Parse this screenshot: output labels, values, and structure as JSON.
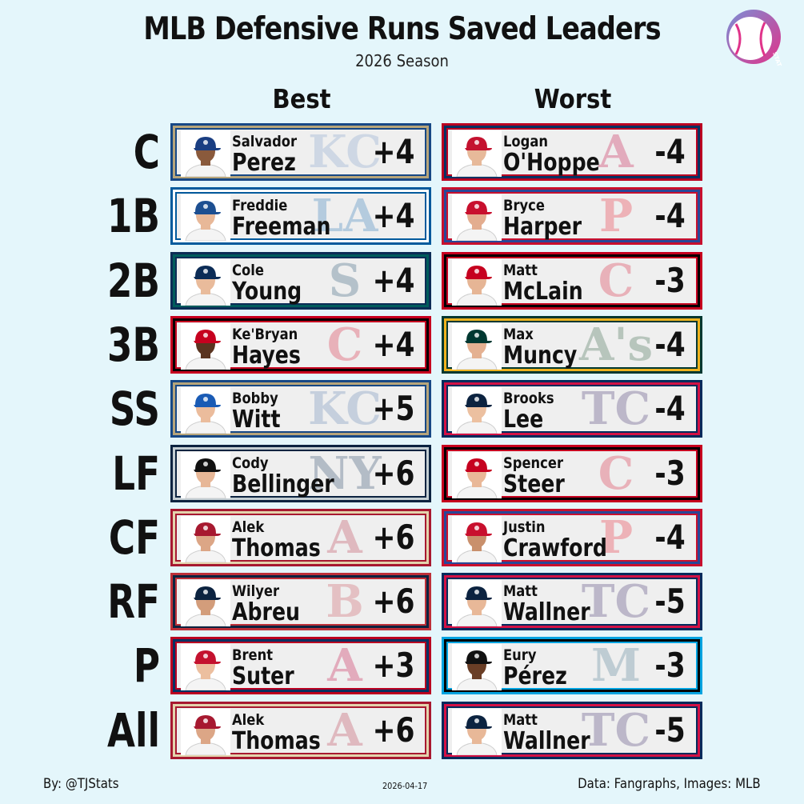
{
  "header": {
    "title": "MLB Defensive Runs Saved Leaders",
    "subtitle": "2026 Season",
    "logo_text": "STATS",
    "best_label": "Best",
    "worst_label": "Worst"
  },
  "rows": [
    {
      "position": "C",
      "best": {
        "first": "Salvador",
        "last": "Perez",
        "value": "+4",
        "team_icon": "royals-logo",
        "colors": [
          "#174885",
          "#b7a57a",
          "#7d9cc8"
        ],
        "cap": "#1a3e82",
        "skin": "#8a5a3c"
      },
      "worst": {
        "first": "Logan",
        "last": "O'Hoppe",
        "value": "-4",
        "team_icon": "angels-logo",
        "colors": [
          "#ba0021",
          "#003263",
          "#c4003a"
        ],
        "cap": "#c4122f",
        "skin": "#e7b99a"
      }
    },
    {
      "position": "1B",
      "best": {
        "first": "Freddie",
        "last": "Freeman",
        "value": "+4",
        "team_icon": "dodgers-logo",
        "colors": [
          "#005a9c",
          "#ffffff",
          "#1e6fb5"
        ],
        "cap": "#1d4f91",
        "skin": "#e8b898"
      },
      "worst": {
        "first": "Bryce",
        "last": "Harper",
        "value": "-4",
        "team_icon": "phillies-logo",
        "colors": [
          "#c8102e",
          "#284898",
          "#e81828"
        ],
        "cap": "#c8102e",
        "skin": "#e3ad8f"
      }
    },
    {
      "position": "2B",
      "best": {
        "first": "Cole",
        "last": "Young",
        "value": "+4",
        "team_icon": "mariners-logo",
        "colors": [
          "#0c2c56",
          "#005c5c",
          "#1f4e6e"
        ],
        "cap": "#0c2c56",
        "skin": "#e9bb9b"
      },
      "worst": {
        "first": "Matt",
        "last": "McLain",
        "value": "-3",
        "team_icon": "reds-logo",
        "colors": [
          "#c6011f",
          "#000000",
          "#d91432"
        ],
        "cap": "#c6011f",
        "skin": "#e6b595"
      }
    },
    {
      "position": "3B",
      "best": {
        "first": "Ke'Bryan",
        "last": "Hayes",
        "value": "+4",
        "team_icon": "reds-logo",
        "colors": [
          "#c6011f",
          "#000000",
          "#d91432"
        ],
        "cap": "#c6011f",
        "skin": "#5a3420"
      },
      "worst": {
        "first": "Max",
        "last": "Muncy",
        "value": "-4",
        "team_icon": "athletics-logo",
        "colors": [
          "#003831",
          "#efb21e",
          "#2a5a3a"
        ],
        "cap": "#003831",
        "skin": "#e4b192"
      }
    },
    {
      "position": "SS",
      "best": {
        "first": "Bobby",
        "last": "Witt",
        "value": "+5",
        "team_icon": "royals-logo",
        "colors": [
          "#174885",
          "#b7a57a",
          "#5a7fb0"
        ],
        "cap": "#1a5bb5",
        "skin": "#ebbc9c"
      },
      "worst": {
        "first": "Brooks",
        "last": "Lee",
        "value": "-4",
        "team_icon": "twins-logo",
        "colors": [
          "#002b5c",
          "#d31145",
          "#3a2a6a"
        ],
        "cap": "#0c2340",
        "skin": "#ecc0a0"
      }
    },
    {
      "position": "LF",
      "best": {
        "first": "Cody",
        "last": "Bellinger",
        "value": "+6",
        "team_icon": "yankees-logo",
        "colors": [
          "#0c2340",
          "#c4ced3",
          "#1c3a5e"
        ],
        "cap": "#111111",
        "skin": "#e7b797"
      },
      "worst": {
        "first": "Spencer",
        "last": "Steer",
        "value": "-3",
        "team_icon": "reds-logo",
        "colors": [
          "#c6011f",
          "#000000",
          "#d91432"
        ],
        "cap": "#c6011f",
        "skin": "#e9b898"
      }
    },
    {
      "position": "CF",
      "best": {
        "first": "Alek",
        "last": "Thomas",
        "value": "+6",
        "team_icon": "diamondbacks-logo",
        "colors": [
          "#a71930",
          "#e3d4ad",
          "#b73047"
        ],
        "cap": "#a71930",
        "skin": "#dca686"
      },
      "worst": {
        "first": "Justin",
        "last": "Crawford",
        "value": "-4",
        "team_icon": "phillies-logo",
        "colors": [
          "#c8102e",
          "#284898",
          "#e81828"
        ],
        "cap": "#c8102e",
        "skin": "#c9906c"
      }
    },
    {
      "position": "RF",
      "best": {
        "first": "Wilyer",
        "last": "Abreu",
        "value": "+6",
        "team_icon": "red-sox-logo",
        "colors": [
          "#bd3039",
          "#0c2340",
          "#c94a53"
        ],
        "cap": "#0c2340",
        "skin": "#d39d7b"
      },
      "worst": {
        "first": "Matt",
        "last": "Wallner",
        "value": "-5",
        "team_icon": "twins-logo",
        "colors": [
          "#002b5c",
          "#d31145",
          "#3a2a6a"
        ],
        "cap": "#0c2340",
        "skin": "#e8b898"
      }
    },
    {
      "position": "P",
      "best": {
        "first": "Brent",
        "last": "Suter",
        "value": "+3",
        "team_icon": "angels-logo",
        "colors": [
          "#ba0021",
          "#003263",
          "#c4003a"
        ],
        "cap": "#c4122f",
        "skin": "#ecbf9f"
      },
      "worst": {
        "first": "Eury",
        "last": "Pérez",
        "value": "-3",
        "team_icon": "marlins-logo",
        "colors": [
          "#00a3e0",
          "#000000",
          "#41748d"
        ],
        "cap": "#111111",
        "skin": "#6a3e26"
      }
    },
    {
      "position": "All",
      "best": {
        "first": "Alek",
        "last": "Thomas",
        "value": "+6",
        "team_icon": "diamondbacks-logo",
        "colors": [
          "#a71930",
          "#e3d4ad",
          "#b73047"
        ],
        "cap": "#a71930",
        "skin": "#dca686"
      },
      "worst": {
        "first": "Matt",
        "last": "Wallner",
        "value": "-5",
        "team_icon": "twins-logo",
        "colors": [
          "#002b5c",
          "#d31145",
          "#3a2a6a"
        ],
        "cap": "#0c2340",
        "skin": "#e8b898"
      }
    }
  ],
  "watermarks": {
    "royals-logo": "KC",
    "angels-logo": "A",
    "dodgers-logo": "LA",
    "phillies-logo": "P",
    "mariners-logo": "S",
    "reds-logo": "C",
    "athletics-logo": "A's",
    "twins-logo": "TC",
    "yankees-logo": "NY",
    "diamondbacks-logo": "A",
    "red-sox-logo": "B",
    "marlins-logo": "M"
  },
  "footer": {
    "credit": "By: @TJStats",
    "date": "2026-04-17",
    "source": "Data: Fangraphs, Images: MLB"
  }
}
